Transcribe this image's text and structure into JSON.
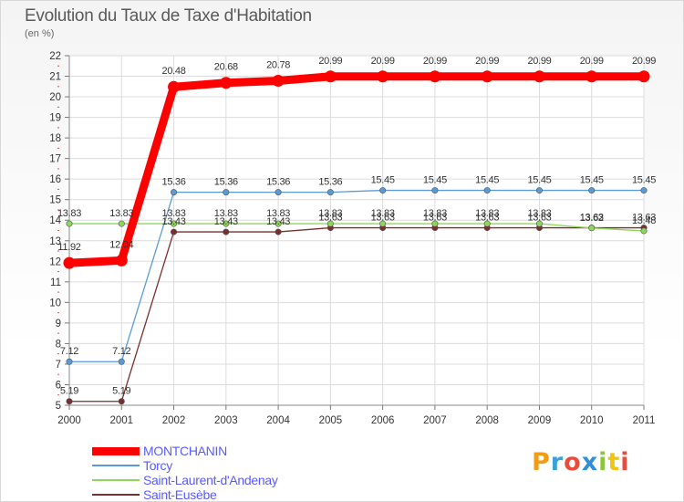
{
  "title": "Evolution du Taux de Taxe d'Habitation",
  "subtitle": "(en %)",
  "brand": {
    "letters": [
      "P",
      "r",
      "o",
      "x",
      "i",
      "t",
      "i"
    ],
    "colors": [
      "#f39c12",
      "#3aa0d8",
      "#e74c3c",
      "#2f8fd8",
      "#8cc63f",
      "#f1c40f",
      "#e74c3c"
    ]
  },
  "chart_data": {
    "type": "line",
    "title": "Evolution du Taux de Taxe d'Habitation",
    "ylabel": "(en %)",
    "xlabel": "",
    "ylim": [
      5,
      22
    ],
    "yticks": [
      5,
      6,
      7,
      8,
      9,
      10,
      11,
      12,
      13,
      14,
      15,
      16,
      17,
      18,
      19,
      20,
      21,
      22
    ],
    "categories": [
      "2000",
      "2001",
      "2002",
      "2003",
      "2004",
      "2005",
      "2006",
      "2007",
      "2008",
      "2009",
      "2010",
      "2011"
    ],
    "legend_position": "bottom-left",
    "series": [
      {
        "name": "MONTCHANIN",
        "color": "#ff0000",
        "width": 9,
        "values": [
          11.92,
          12.04,
          20.48,
          20.68,
          20.78,
          20.99,
          20.99,
          20.99,
          20.99,
          20.99,
          20.99,
          20.99
        ],
        "labels": [
          "11.92",
          "12.04",
          "20.48",
          "20.68",
          "20.78",
          "20.99",
          "20.99",
          "20.99",
          "20.99",
          "20.99",
          "20.99",
          "20.99"
        ]
      },
      {
        "name": "Torcy",
        "color": "#5b9bd5",
        "width": 1.3,
        "values": [
          7.12,
          7.12,
          15.36,
          15.36,
          15.36,
          15.36,
          15.45,
          15.45,
          15.45,
          15.45,
          15.45,
          15.45
        ],
        "labels": [
          "7.12",
          "7.12",
          "15.36",
          "15.36",
          "15.36",
          "15.36",
          "15.45",
          "15.45",
          "15.45",
          "15.45",
          "15.45",
          "15.45"
        ]
      },
      {
        "name": "Saint-Laurent-d'Andenay",
        "color": "#8fd65a",
        "width": 1.3,
        "values": [
          13.83,
          13.83,
          13.83,
          13.83,
          13.83,
          13.83,
          13.83,
          13.83,
          13.83,
          13.83,
          13.62,
          13.48
        ],
        "labels": [
          "13.83",
          "13.83",
          "13.83",
          "13.83",
          "13.83",
          "13.83",
          "13.83",
          "13.83",
          "13.83",
          "13.83",
          "13.62",
          "13.48"
        ]
      },
      {
        "name": "Saint-Eusèbe",
        "color": "#7a2e2e",
        "width": 1.3,
        "values": [
          5.19,
          5.19,
          13.43,
          13.43,
          13.43,
          13.63,
          13.63,
          13.63,
          13.63,
          13.63,
          13.63,
          13.63
        ],
        "labels": [
          "5.19",
          "5.19",
          "13.43",
          "13.43",
          "13.43",
          "13.63",
          "13.63",
          "13.63",
          "13.63",
          "13.63",
          "13.63",
          "13.63"
        ]
      }
    ]
  }
}
